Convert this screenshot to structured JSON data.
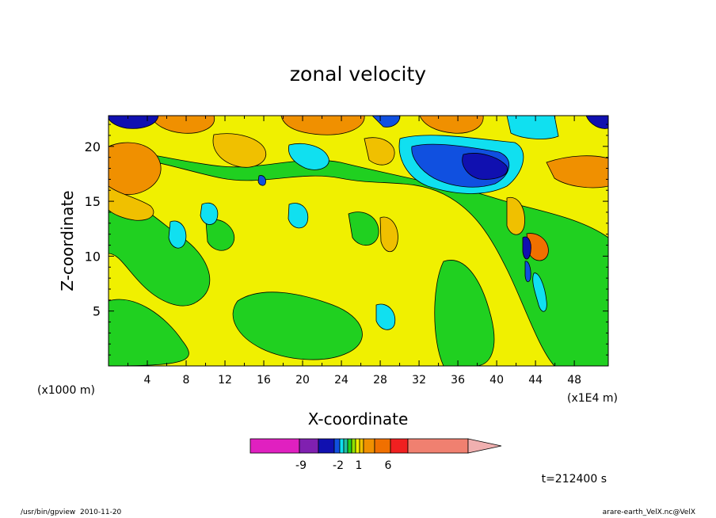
{
  "chart_data": {
    "type": "heatmap",
    "title": "zonal velocity",
    "xlabel": "X-coordinate",
    "ylabel": "Z-coordinate",
    "x_units_left": "(x1000 m)",
    "x_units_right": "(x1E4 m)",
    "xlim": [
      0,
      51.5
    ],
    "ylim": [
      0,
      22.8
    ],
    "x_ticks": [
      "4",
      "8",
      "12",
      "16",
      "20",
      "24",
      "28",
      "32",
      "36",
      "40",
      "44",
      "48"
    ],
    "y_ticks": [
      "5",
      "10",
      "15",
      "20"
    ],
    "time_label": "t=212400 s",
    "colorbar": {
      "tick_labels": [
        "-9",
        "-2",
        "1",
        "6"
      ],
      "colors": [
        "#e020c0",
        "#8020b0",
        "#1010b0",
        "#1050e0",
        "#10e0f0",
        "#20c0a0",
        "#20d020",
        "#90e000",
        "#f0f000",
        "#f0c000",
        "#f09000",
        "#f07000",
        "#f02020",
        "#f08070",
        "#f0b0b0"
      ]
    },
    "colors": {
      "plot_background": "#f0f000"
    }
  },
  "footer": {
    "left": "/usr/bin/gpview  2010-11-20",
    "right": "arare-earth_VelX.nc@VelX"
  }
}
